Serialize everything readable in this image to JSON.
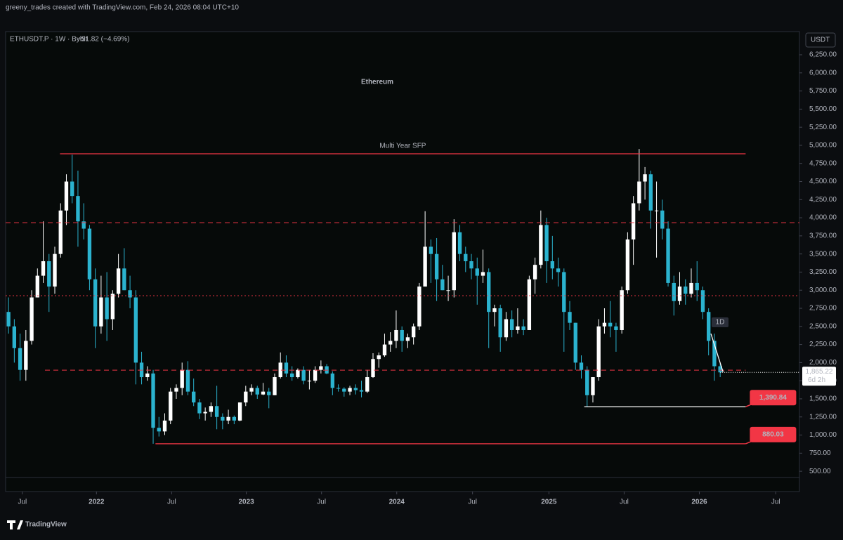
{
  "header": {
    "attribution": "greeny_trades created with TradingView.com, Feb 24, 2026 08:04 UTC+10",
    "logo": "TradingView"
  },
  "chart_data": {
    "type": "candlestick",
    "symbol": "ETHUSDT.P · 1W · Bybit",
    "change": "−91.82 (−4.69%)",
    "title": "Ethereum",
    "currency": "USDT",
    "up_color": "#ffffff",
    "down_color": "#2bb3cf",
    "candles": [
      [
        2700,
        2900,
        2400,
        2500
      ],
      [
        2500,
        2600,
        2000,
        2200
      ],
      [
        2200,
        2400,
        1750,
        1900
      ],
      [
        1900,
        2450,
        1750,
        2300
      ],
      [
        2300,
        3000,
        2250,
        2900
      ],
      [
        2900,
        3300,
        2900,
        3200
      ],
      [
        3200,
        3950,
        3100,
        3400
      ],
      [
        3400,
        3500,
        2700,
        3050
      ],
      [
        3050,
        3600,
        2950,
        3500
      ],
      [
        3500,
        4200,
        3450,
        4100
      ],
      [
        4100,
        4600,
        3900,
        4500
      ],
      [
        4500,
        4870,
        4200,
        4300
      ],
      [
        4300,
        4650,
        3600,
        3950
      ],
      [
        3950,
        4200,
        3700,
        3850
      ],
      [
        3850,
        3900,
        3000,
        3150
      ],
      [
        3150,
        3300,
        2200,
        2500
      ],
      [
        2500,
        3200,
        2400,
        2900
      ],
      [
        2900,
        3250,
        2300,
        2600
      ],
      [
        2600,
        3000,
        2450,
        2950
      ],
      [
        2950,
        3500,
        2900,
        3300
      ],
      [
        3300,
        3580,
        3000,
        3000
      ],
      [
        3000,
        3200,
        2750,
        2900
      ],
      [
        2900,
        3000,
        1700,
        2000
      ],
      [
        2000,
        2150,
        1700,
        1800
      ],
      [
        1800,
        1950,
        1750,
        1850
      ],
      [
        1850,
        1900,
        880,
        1100
      ],
      [
        1100,
        1250,
        980,
        1050
      ],
      [
        1050,
        1300,
        1000,
        1200
      ],
      [
        1200,
        1650,
        1150,
        1600
      ],
      [
        1600,
        1700,
        1500,
        1650
      ],
      [
        1650,
        2000,
        1550,
        1900
      ],
      [
        1900,
        2020,
        1550,
        1600
      ],
      [
        1600,
        1780,
        1400,
        1450
      ],
      [
        1450,
        1500,
        1220,
        1300
      ],
      [
        1300,
        1380,
        1200,
        1320
      ],
      [
        1320,
        1450,
        1250,
        1400
      ],
      [
        1400,
        1680,
        1080,
        1250
      ],
      [
        1250,
        1300,
        1080,
        1200
      ],
      [
        1200,
        1350,
        1150,
        1250
      ],
      [
        1250,
        1270,
        1150,
        1200
      ],
      [
        1200,
        1450,
        1190,
        1450
      ],
      [
        1450,
        1680,
        1400,
        1600
      ],
      [
        1600,
        1700,
        1550,
        1650
      ],
      [
        1650,
        1680,
        1500,
        1560
      ],
      [
        1560,
        1720,
        1550,
        1600
      ],
      [
        1600,
        1650,
        1370,
        1550
      ],
      [
        1550,
        1850,
        1550,
        1800
      ],
      [
        1800,
        2140,
        1780,
        2000
      ],
      [
        2000,
        2100,
        1800,
        1850
      ],
      [
        1850,
        1950,
        1750,
        1800
      ],
      [
        1800,
        1920,
        1780,
        1900
      ],
      [
        1900,
        1950,
        1700,
        1750
      ],
      [
        1750,
        1900,
        1630,
        1750
      ],
      [
        1750,
        1950,
        1720,
        1900
      ],
      [
        1900,
        2030,
        1850,
        1950
      ],
      [
        1950,
        1980,
        1840,
        1850
      ],
      [
        1850,
        1880,
        1550,
        1650
      ],
      [
        1650,
        1700,
        1600,
        1640
      ],
      [
        1640,
        1660,
        1530,
        1600
      ],
      [
        1600,
        1680,
        1550,
        1650
      ],
      [
        1650,
        1700,
        1560,
        1620
      ],
      [
        1620,
        1750,
        1520,
        1600
      ],
      [
        1600,
        1900,
        1580,
        1800
      ],
      [
        1800,
        2130,
        1790,
        2050
      ],
      [
        2050,
        2140,
        1930,
        2100
      ],
      [
        2100,
        2400,
        2080,
        2250
      ],
      [
        2250,
        2420,
        2150,
        2300
      ],
      [
        2300,
        2720,
        2200,
        2450
      ],
      [
        2450,
        2500,
        2150,
        2300
      ],
      [
        2300,
        2400,
        2200,
        2350
      ],
      [
        2350,
        2540,
        2250,
        2500
      ],
      [
        2500,
        3100,
        2450,
        3050
      ],
      [
        3050,
        4090,
        3050,
        3600
      ],
      [
        3600,
        3700,
        3100,
        3500
      ],
      [
        3500,
        3720,
        2850,
        3150
      ],
      [
        3150,
        3350,
        3000,
        3000
      ],
      [
        3000,
        3200,
        2850,
        3000
      ],
      [
        3000,
        3980,
        2900,
        3800
      ],
      [
        3800,
        3900,
        3400,
        3500
      ],
      [
        3500,
        3600,
        3250,
        3400
      ],
      [
        3400,
        3500,
        3150,
        3300
      ],
      [
        3300,
        3450,
        2800,
        3200
      ],
      [
        3200,
        3560,
        3100,
        3250
      ],
      [
        3250,
        3300,
        2200,
        2700
      ],
      [
        2700,
        2800,
        2500,
        2750
      ],
      [
        2750,
        2800,
        2150,
        2350
      ],
      [
        2350,
        2700,
        2300,
        2600
      ],
      [
        2600,
        2720,
        2350,
        2450
      ],
      [
        2450,
        2750,
        2400,
        2500
      ],
      [
        2500,
        2600,
        2380,
        2450
      ],
      [
        2450,
        3200,
        2450,
        3150
      ],
      [
        3150,
        3450,
        2950,
        3350
      ],
      [
        3350,
        4100,
        3300,
        3900
      ],
      [
        3900,
        4000,
        3100,
        3400
      ],
      [
        3400,
        3750,
        3150,
        3300
      ],
      [
        3300,
        3450,
        3050,
        3250
      ],
      [
        3250,
        3300,
        2150,
        2700
      ],
      [
        2700,
        2850,
        2450,
        2550
      ],
      [
        2550,
        2550,
        1900,
        2000
      ],
      [
        2000,
        2100,
        1780,
        1900
      ],
      [
        1900,
        1950,
        1390,
        1550
      ],
      [
        1550,
        1800,
        1450,
        1800
      ],
      [
        1800,
        2600,
        1750,
        2500
      ],
      [
        2500,
        2750,
        2400,
        2550
      ],
      [
        2550,
        2850,
        2350,
        2500
      ],
      [
        2500,
        2550,
        2150,
        2450
      ],
      [
        2450,
        3050,
        2400,
        3000
      ],
      [
        3000,
        3800,
        2950,
        3700
      ],
      [
        3700,
        4300,
        3350,
        4200
      ],
      [
        4200,
        4950,
        4100,
        4500
      ],
      [
        4500,
        4700,
        4250,
        4600
      ],
      [
        4600,
        4650,
        3850,
        4100
      ],
      [
        4100,
        4500,
        3450,
        4100
      ],
      [
        4100,
        4250,
        3700,
        3850
      ],
      [
        3850,
        3950,
        3050,
        3100
      ],
      [
        3100,
        3200,
        2650,
        2850
      ],
      [
        2850,
        3250,
        2800,
        3050
      ],
      [
        3050,
        3150,
        2800,
        2950
      ],
      [
        2950,
        3300,
        2900,
        3100
      ],
      [
        3100,
        3400,
        2850,
        3000
      ],
      [
        3000,
        3050,
        2600,
        2700
      ],
      [
        2700,
        2750,
        2100,
        2300
      ],
      [
        2300,
        2400,
        1750,
        1950
      ],
      [
        1950,
        2000,
        1800,
        1865.22
      ]
    ],
    "xlim": [
      -0.5,
      136.7
    ],
    "xticks": [
      {
        "value": 2.4,
        "label": "Jul"
      },
      {
        "value": 15.2,
        "label": "2022"
      },
      {
        "value": 28.2,
        "label": "Jul"
      },
      {
        "value": 41.1,
        "label": "2023"
      },
      {
        "value": 54.1,
        "label": "Jul"
      },
      {
        "value": 67.1,
        "label": "2024"
      },
      {
        "value": 80.2,
        "label": "Jul"
      },
      {
        "value": 93.4,
        "label": "2025"
      },
      {
        "value": 106.4,
        "label": "Jul"
      },
      {
        "value": 119.4,
        "label": "2026"
      },
      {
        "value": 132.6,
        "label": "Jul"
      }
    ],
    "ylim": [
      220,
      6570
    ],
    "yticks": [
      {
        "value": 500,
        "label": "500.00"
      },
      {
        "value": 750,
        "label": "750.00"
      },
      {
        "value": 1000,
        "label": "1,000.00"
      },
      {
        "value": 1250,
        "label": "1,250.00"
      },
      {
        "value": 1500,
        "label": "1,500.00"
      },
      {
        "value": 1750,
        "label": "1,750.00"
      },
      {
        "value": 2000,
        "label": "2,000.00"
      },
      {
        "value": 2250,
        "label": "2,250.00"
      },
      {
        "value": 2500,
        "label": "2,500.00"
      },
      {
        "value": 2750,
        "label": "2,750.00"
      },
      {
        "value": 3000,
        "label": "3,000.00"
      },
      {
        "value": 3250,
        "label": "3,250.00"
      },
      {
        "value": 3500,
        "label": "3,500.00"
      },
      {
        "value": 3750,
        "label": "3,750.00"
      },
      {
        "value": 4000,
        "label": "4,000.00"
      },
      {
        "value": 4250,
        "label": "4,250.00"
      },
      {
        "value": 4500,
        "label": "4,500.00"
      },
      {
        "value": 4750,
        "label": "4,750.00"
      },
      {
        "value": 5000,
        "label": "5,000.00"
      },
      {
        "value": 5250,
        "label": "5,250.00"
      },
      {
        "value": 5500,
        "label": "5,500.00"
      },
      {
        "value": 5750,
        "label": "5,750.00"
      },
      {
        "value": 6000,
        "label": "6,000.00"
      },
      {
        "value": 6250,
        "label": "6,250.00"
      }
    ],
    "levels": [
      {
        "value": 4883,
        "from": 8.9,
        "to": 127.4,
        "style": "solid",
        "color": "#f23645",
        "annotation": "Multi Year SFP"
      },
      {
        "value": 3932,
        "from": -0.5,
        "to": 136.7,
        "style": "dashed",
        "color": "#f23645"
      },
      {
        "value": 2924,
        "from": -0.5,
        "to": 136.7,
        "style": "dotted",
        "color": "#f23645"
      },
      {
        "value": 1896,
        "from": 6.3,
        "to": 127.4,
        "style": "dashed",
        "color": "#f23645"
      },
      {
        "value": 1390.84,
        "label": "1,390.84",
        "from": 99.5,
        "to": 127.4,
        "style": "solid",
        "color": "#ffffff"
      },
      {
        "value": 880.03,
        "label": "880.03",
        "from": 25.4,
        "to": 127.4,
        "style": "solid",
        "color": "#f23645"
      }
    ],
    "trend_line": {
      "x": [
        121.4,
        123.5
      ],
      "y": [
        2400,
        1870
      ]
    },
    "interval_badge": "1D",
    "last_price": {
      "value": 1865.22,
      "label": "1,865.22",
      "countdown": "6d 2h"
    }
  }
}
